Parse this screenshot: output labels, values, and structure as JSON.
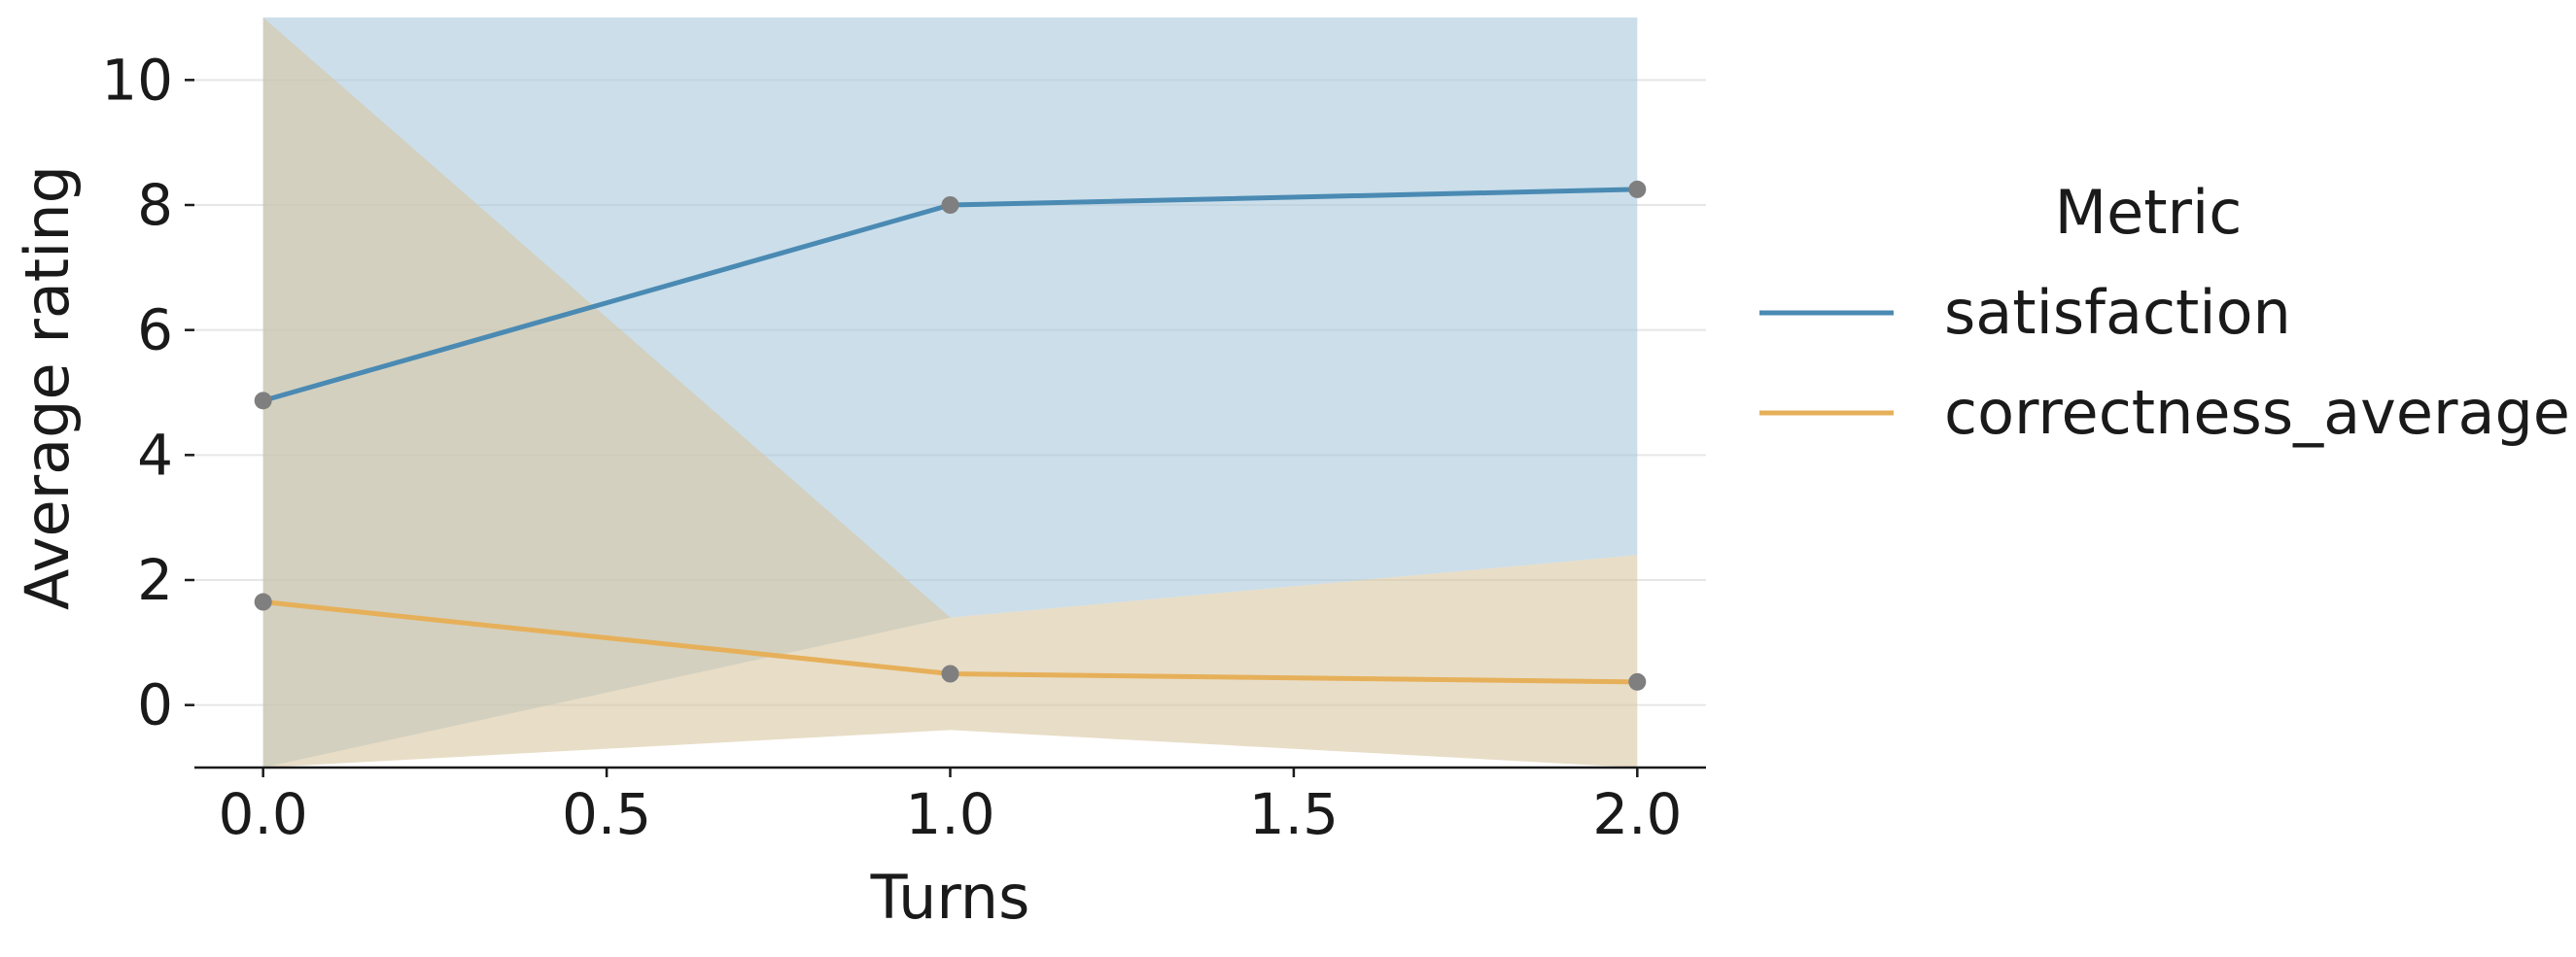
{
  "chart_data": {
    "type": "line",
    "xlabel": "Turns",
    "ylabel": "Average rating",
    "xlim": [
      -0.1,
      2.1
    ],
    "ylim": [
      -1,
      11
    ],
    "x_ticks": [
      "0.0",
      "0.5",
      "1.0",
      "1.5",
      "2.0"
    ],
    "x_tick_values": [
      0,
      0.5,
      1,
      1.5,
      2
    ],
    "y_ticks": [
      "0",
      "2",
      "4",
      "6",
      "8",
      "10"
    ],
    "y_tick_values": [
      0,
      2,
      4,
      6,
      8,
      10
    ],
    "grid": "horizontal",
    "legend_title": "Metric",
    "legend_position": "right",
    "x": [
      0,
      1,
      2
    ],
    "series": [
      {
        "name": "satisfaction",
        "color": "#4a8ab3",
        "band_color": "#a8c8dc",
        "values": [
          4.87,
          8.0,
          8.25
        ],
        "ci_lower": [
          -1,
          1.4,
          2.4
        ],
        "ci_upper": [
          11,
          11,
          11
        ]
      },
      {
        "name": "correctness_average",
        "color": "#e6b05a",
        "band_color": "#d9c7a2",
        "values": [
          1.65,
          0.5,
          0.37
        ],
        "ci_lower": [
          -1,
          -0.4,
          -1
        ],
        "ci_upper": [
          11,
          1.4,
          2.4
        ]
      }
    ],
    "marker_color": "#7f7f7f"
  }
}
